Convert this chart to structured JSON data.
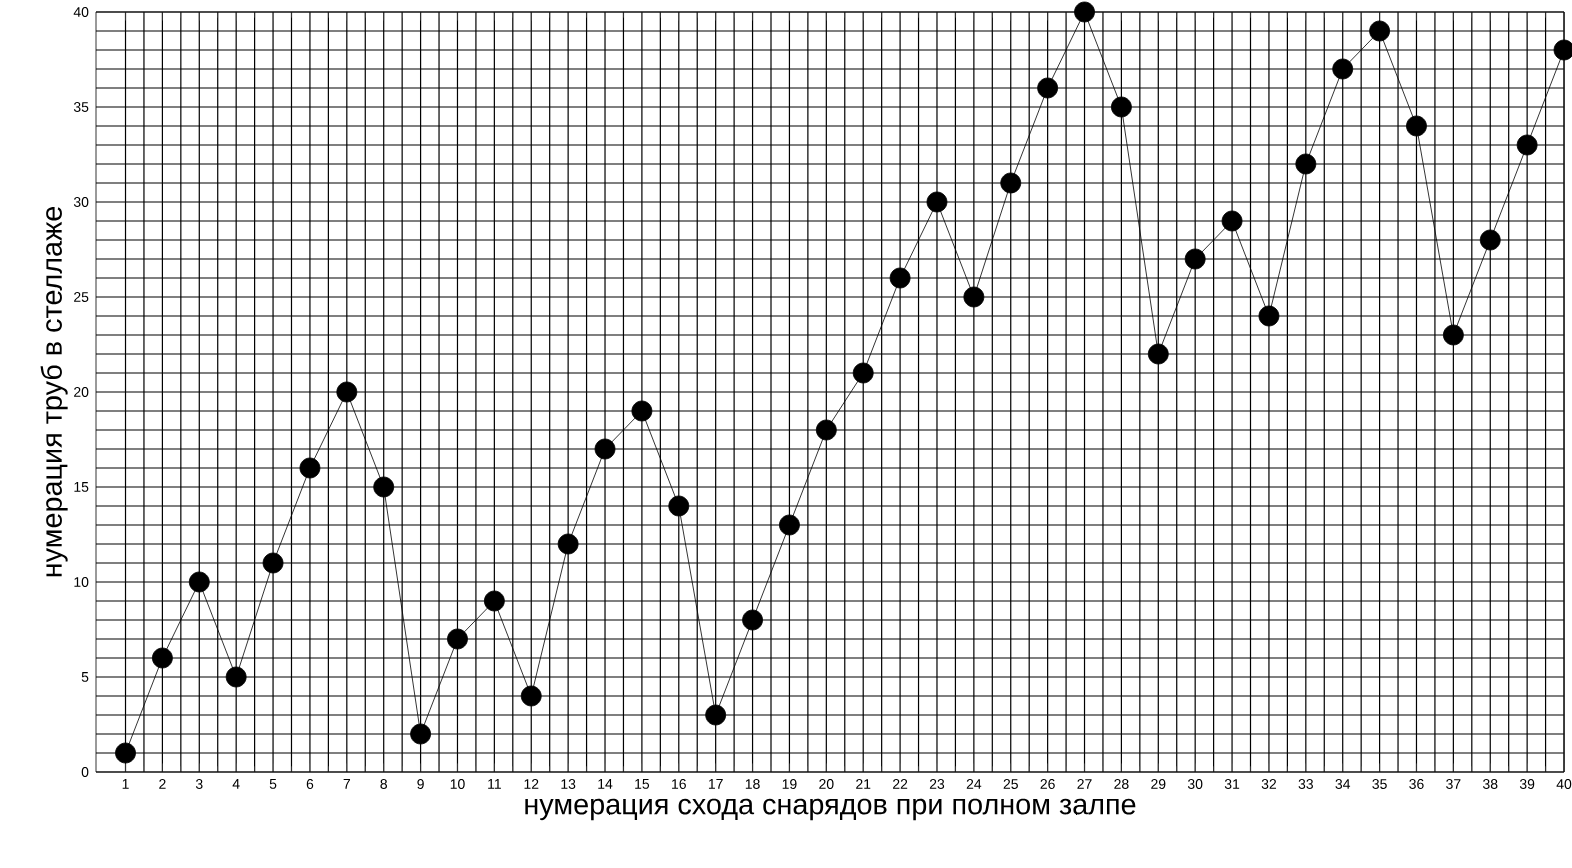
{
  "chart_data": {
    "type": "line",
    "xlabel": "нумерация схода снарядов при полном залпе",
    "ylabel": "нумерация труб в стеллаже",
    "x": [
      1,
      2,
      3,
      4,
      5,
      6,
      7,
      8,
      9,
      10,
      11,
      12,
      13,
      14,
      15,
      16,
      17,
      18,
      19,
      20,
      21,
      22,
      23,
      24,
      25,
      26,
      27,
      28,
      29,
      30,
      31,
      32,
      33,
      34,
      35,
      36,
      37,
      38,
      39,
      40
    ],
    "values": [
      1,
      6,
      10,
      5,
      11,
      16,
      20,
      15,
      2,
      7,
      9,
      4,
      12,
      17,
      19,
      14,
      3,
      8,
      13,
      18,
      21,
      26,
      30,
      25,
      31,
      36,
      40,
      35,
      22,
      27,
      29,
      24,
      32,
      37,
      39,
      34,
      23,
      28,
      33,
      38
    ],
    "color": "#000000",
    "marker": "circle",
    "line_style": "solid",
    "grid": true,
    "xlim": [
      0.2,
      40
    ],
    "ylim": [
      0,
      40
    ],
    "xticks": [
      1,
      2,
      3,
      4,
      5,
      6,
      7,
      8,
      9,
      10,
      11,
      12,
      13,
      14,
      15,
      16,
      17,
      18,
      19,
      20,
      21,
      22,
      23,
      24,
      25,
      26,
      27,
      28,
      29,
      30,
      31,
      32,
      33,
      34,
      35,
      36,
      37,
      38,
      39,
      40
    ],
    "yticks": [
      0,
      5,
      10,
      15,
      20,
      25,
      30,
      35,
      40
    ]
  }
}
